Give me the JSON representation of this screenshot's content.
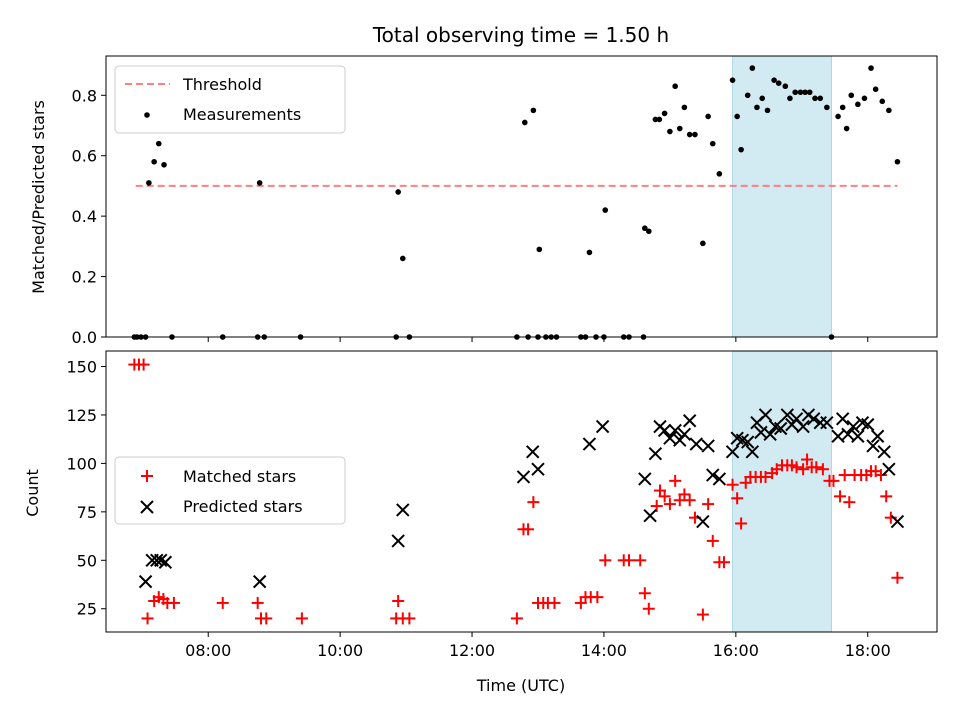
{
  "title": "Total observing time = 1.50 h",
  "colors": {
    "threshold": "#ff7f7f",
    "measurements": "#000000",
    "matched": "#ff0000",
    "predicted": "#000000",
    "span": "#add8e6"
  },
  "chart_data": [
    {
      "type": "scatter",
      "ylabel": "Matched/Predicted stars",
      "xlim": [
        6.45,
        19.05
      ],
      "ylim": [
        0,
        0.93
      ],
      "yticks": [
        0.0,
        0.2,
        0.4,
        0.6,
        0.8
      ],
      "ytick_labels": [
        "0.0",
        "0.2",
        "0.4",
        "0.6",
        "0.8"
      ],
      "highlight_span": [
        15.95,
        17.45
      ],
      "legend": {
        "placement": "upper left",
        "entries": [
          "Threshold",
          "Measurements"
        ]
      },
      "threshold": {
        "name": "Threshold",
        "x": [
          6.9,
          18.45
        ],
        "y": 0.5
      },
      "series": [
        {
          "name": "Measurements",
          "points": [
            [
              6.88,
              0.0
            ],
            [
              6.92,
              0.0
            ],
            [
              6.98,
              0.0
            ],
            [
              7.05,
              0.0
            ],
            [
              7.1,
              0.51
            ],
            [
              7.18,
              0.58
            ],
            [
              7.25,
              0.64
            ],
            [
              7.33,
              0.57
            ],
            [
              7.45,
              0.0
            ],
            [
              8.22,
              0.0
            ],
            [
              8.75,
              0.0
            ],
            [
              8.78,
              0.51
            ],
            [
              8.85,
              0.0
            ],
            [
              9.4,
              0.0
            ],
            [
              10.85,
              0.0
            ],
            [
              10.88,
              0.48
            ],
            [
              10.95,
              0.26
            ],
            [
              11.05,
              0.0
            ],
            [
              12.68,
              0.0
            ],
            [
              12.8,
              0.71
            ],
            [
              12.85,
              0.0
            ],
            [
              12.93,
              0.75
            ],
            [
              13.0,
              0.0
            ],
            [
              13.02,
              0.29
            ],
            [
              13.12,
              0.0
            ],
            [
              13.2,
              0.0
            ],
            [
              13.28,
              0.0
            ],
            [
              13.65,
              0.0
            ],
            [
              13.72,
              0.0
            ],
            [
              13.78,
              0.28
            ],
            [
              13.88,
              0.0
            ],
            [
              14.0,
              0.0
            ],
            [
              14.02,
              0.42
            ],
            [
              14.3,
              0.0
            ],
            [
              14.38,
              0.0
            ],
            [
              14.6,
              0.0
            ],
            [
              14.62,
              0.36
            ],
            [
              14.68,
              0.35
            ],
            [
              14.78,
              0.72
            ],
            [
              14.84,
              0.72
            ],
            [
              14.92,
              0.74
            ],
            [
              15.0,
              0.68
            ],
            [
              15.08,
              0.83
            ],
            [
              15.15,
              0.69
            ],
            [
              15.22,
              0.76
            ],
            [
              15.3,
              0.67
            ],
            [
              15.38,
              0.67
            ],
            [
              15.5,
              0.31
            ],
            [
              15.58,
              0.73
            ],
            [
              15.65,
              0.64
            ],
            [
              15.75,
              0.54
            ],
            [
              15.95,
              0.85
            ],
            [
              16.02,
              0.73
            ],
            [
              16.08,
              0.62
            ],
            [
              16.18,
              0.8
            ],
            [
              16.25,
              0.89
            ],
            [
              16.32,
              0.76
            ],
            [
              16.4,
              0.79
            ],
            [
              16.48,
              0.75
            ],
            [
              16.58,
              0.85
            ],
            [
              16.65,
              0.84
            ],
            [
              16.75,
              0.83
            ],
            [
              16.82,
              0.79
            ],
            [
              16.9,
              0.81
            ],
            [
              16.98,
              0.81
            ],
            [
              17.05,
              0.81
            ],
            [
              17.12,
              0.81
            ],
            [
              17.2,
              0.79
            ],
            [
              17.28,
              0.79
            ],
            [
              17.38,
              0.76
            ],
            [
              17.45,
              0.0
            ],
            [
              17.55,
              0.73
            ],
            [
              17.62,
              0.76
            ],
            [
              17.68,
              0.69
            ],
            [
              17.75,
              0.8
            ],
            [
              17.85,
              0.77
            ],
            [
              17.95,
              0.79
            ],
            [
              18.05,
              0.89
            ],
            [
              18.12,
              0.82
            ],
            [
              18.22,
              0.78
            ],
            [
              18.32,
              0.75
            ],
            [
              18.45,
              0.58
            ]
          ]
        }
      ]
    },
    {
      "type": "scatter",
      "xlabel": "Time (UTC)",
      "ylabel": "Count",
      "xlim": [
        6.45,
        19.05
      ],
      "ylim": [
        13,
        158
      ],
      "yticks": [
        25,
        50,
        75,
        100,
        125,
        150
      ],
      "ytick_labels": [
        "25",
        "50",
        "75",
        "100",
        "125",
        "150"
      ],
      "xticks": [
        8,
        10,
        12,
        14,
        16,
        18
      ],
      "xtick_labels": [
        "08:00",
        "10:00",
        "12:00",
        "14:00",
        "16:00",
        "18:00"
      ],
      "highlight_span": [
        15.95,
        17.45
      ],
      "legend": {
        "placement": "center left",
        "entries": [
          "Matched stars",
          "Predicted stars"
        ]
      },
      "series": [
        {
          "name": "Matched stars",
          "marker": "plus",
          "points": [
            [
              6.88,
              151
            ],
            [
              6.95,
              151
            ],
            [
              7.02,
              151
            ],
            [
              7.08,
              20
            ],
            [
              7.18,
              29
            ],
            [
              7.25,
              31
            ],
            [
              7.32,
              30
            ],
            [
              7.38,
              28
            ],
            [
              7.48,
              28
            ],
            [
              8.22,
              28
            ],
            [
              8.75,
              28
            ],
            [
              8.8,
              20
            ],
            [
              8.88,
              20
            ],
            [
              9.42,
              20
            ],
            [
              10.85,
              20
            ],
            [
              10.88,
              29
            ],
            [
              10.95,
              20
            ],
            [
              11.05,
              20
            ],
            [
              12.68,
              20
            ],
            [
              12.78,
              66
            ],
            [
              12.85,
              66
            ],
            [
              12.93,
              80
            ],
            [
              13.0,
              28
            ],
            [
              13.08,
              28
            ],
            [
              13.15,
              28
            ],
            [
              13.25,
              28
            ],
            [
              13.65,
              28
            ],
            [
              13.72,
              31
            ],
            [
              13.8,
              31
            ],
            [
              13.9,
              31
            ],
            [
              14.02,
              50
            ],
            [
              14.3,
              50
            ],
            [
              14.38,
              50
            ],
            [
              14.55,
              50
            ],
            [
              14.62,
              33
            ],
            [
              14.68,
              25
            ],
            [
              14.8,
              78
            ],
            [
              14.85,
              86
            ],
            [
              14.92,
              83
            ],
            [
              15.0,
              79
            ],
            [
              15.08,
              91
            ],
            [
              15.15,
              81
            ],
            [
              15.22,
              84
            ],
            [
              15.3,
              81
            ],
            [
              15.38,
              72
            ],
            [
              15.5,
              22
            ],
            [
              15.58,
              79
            ],
            [
              15.65,
              60
            ],
            [
              15.75,
              49
            ],
            [
              15.82,
              49
            ],
            [
              15.95,
              89
            ],
            [
              16.02,
              82
            ],
            [
              16.08,
              69
            ],
            [
              16.15,
              90
            ],
            [
              16.22,
              93
            ],
            [
              16.3,
              93
            ],
            [
              16.38,
              93
            ],
            [
              16.45,
              93
            ],
            [
              16.55,
              95
            ],
            [
              16.62,
              97
            ],
            [
              16.7,
              99
            ],
            [
              16.78,
              99
            ],
            [
              16.85,
              99
            ],
            [
              16.92,
              98
            ],
            [
              17.02,
              97
            ],
            [
              17.08,
              102
            ],
            [
              17.15,
              98
            ],
            [
              17.22,
              98
            ],
            [
              17.32,
              97
            ],
            [
              17.42,
              91
            ],
            [
              17.48,
              91
            ],
            [
              17.58,
              83
            ],
            [
              17.65,
              94
            ],
            [
              17.72,
              80
            ],
            [
              17.8,
              94
            ],
            [
              17.9,
              94
            ],
            [
              17.98,
              94
            ],
            [
              18.05,
              96
            ],
            [
              18.12,
              96
            ],
            [
              18.2,
              94
            ],
            [
              18.28,
              83
            ],
            [
              18.35,
              72
            ],
            [
              18.45,
              41
            ]
          ]
        },
        {
          "name": "Predicted stars",
          "marker": "x",
          "points": [
            [
              7.05,
              39
            ],
            [
              7.15,
              50
            ],
            [
              7.22,
              50
            ],
            [
              7.28,
              50
            ],
            [
              7.35,
              49
            ],
            [
              8.78,
              39
            ],
            [
              10.88,
              60
            ],
            [
              10.95,
              76
            ],
            [
              12.78,
              93
            ],
            [
              12.92,
              106
            ],
            [
              13.0,
              97
            ],
            [
              13.78,
              110
            ],
            [
              13.98,
              119
            ],
            [
              14.62,
              92
            ],
            [
              14.7,
              73
            ],
            [
              14.78,
              105
            ],
            [
              14.85,
              119
            ],
            [
              14.92,
              117
            ],
            [
              15.0,
              113
            ],
            [
              15.08,
              117
            ],
            [
              15.15,
              112
            ],
            [
              15.22,
              115
            ],
            [
              15.3,
              122
            ],
            [
              15.4,
              110
            ],
            [
              15.5,
              70
            ],
            [
              15.58,
              109
            ],
            [
              15.65,
              94
            ],
            [
              15.75,
              92
            ],
            [
              15.95,
              106
            ],
            [
              16.02,
              113
            ],
            [
              16.1,
              112
            ],
            [
              16.18,
              111
            ],
            [
              16.25,
              106
            ],
            [
              16.32,
              121
            ],
            [
              16.38,
              116
            ],
            [
              16.45,
              125
            ],
            [
              16.52,
              115
            ],
            [
              16.6,
              119
            ],
            [
              16.68,
              118
            ],
            [
              16.78,
              125
            ],
            [
              16.85,
              120
            ],
            [
              16.92,
              123
            ],
            [
              17.02,
              119
            ],
            [
              17.1,
              125
            ],
            [
              17.18,
              123
            ],
            [
              17.28,
              121
            ],
            [
              17.38,
              121
            ],
            [
              17.55,
              114
            ],
            [
              17.62,
              123
            ],
            [
              17.7,
              115
            ],
            [
              17.78,
              119
            ],
            [
              17.85,
              114
            ],
            [
              17.92,
              121
            ],
            [
              18.0,
              120
            ],
            [
              18.08,
              109
            ],
            [
              18.15,
              114
            ],
            [
              18.25,
              106
            ],
            [
              18.32,
              97
            ],
            [
              18.45,
              70
            ]
          ]
        }
      ]
    }
  ]
}
